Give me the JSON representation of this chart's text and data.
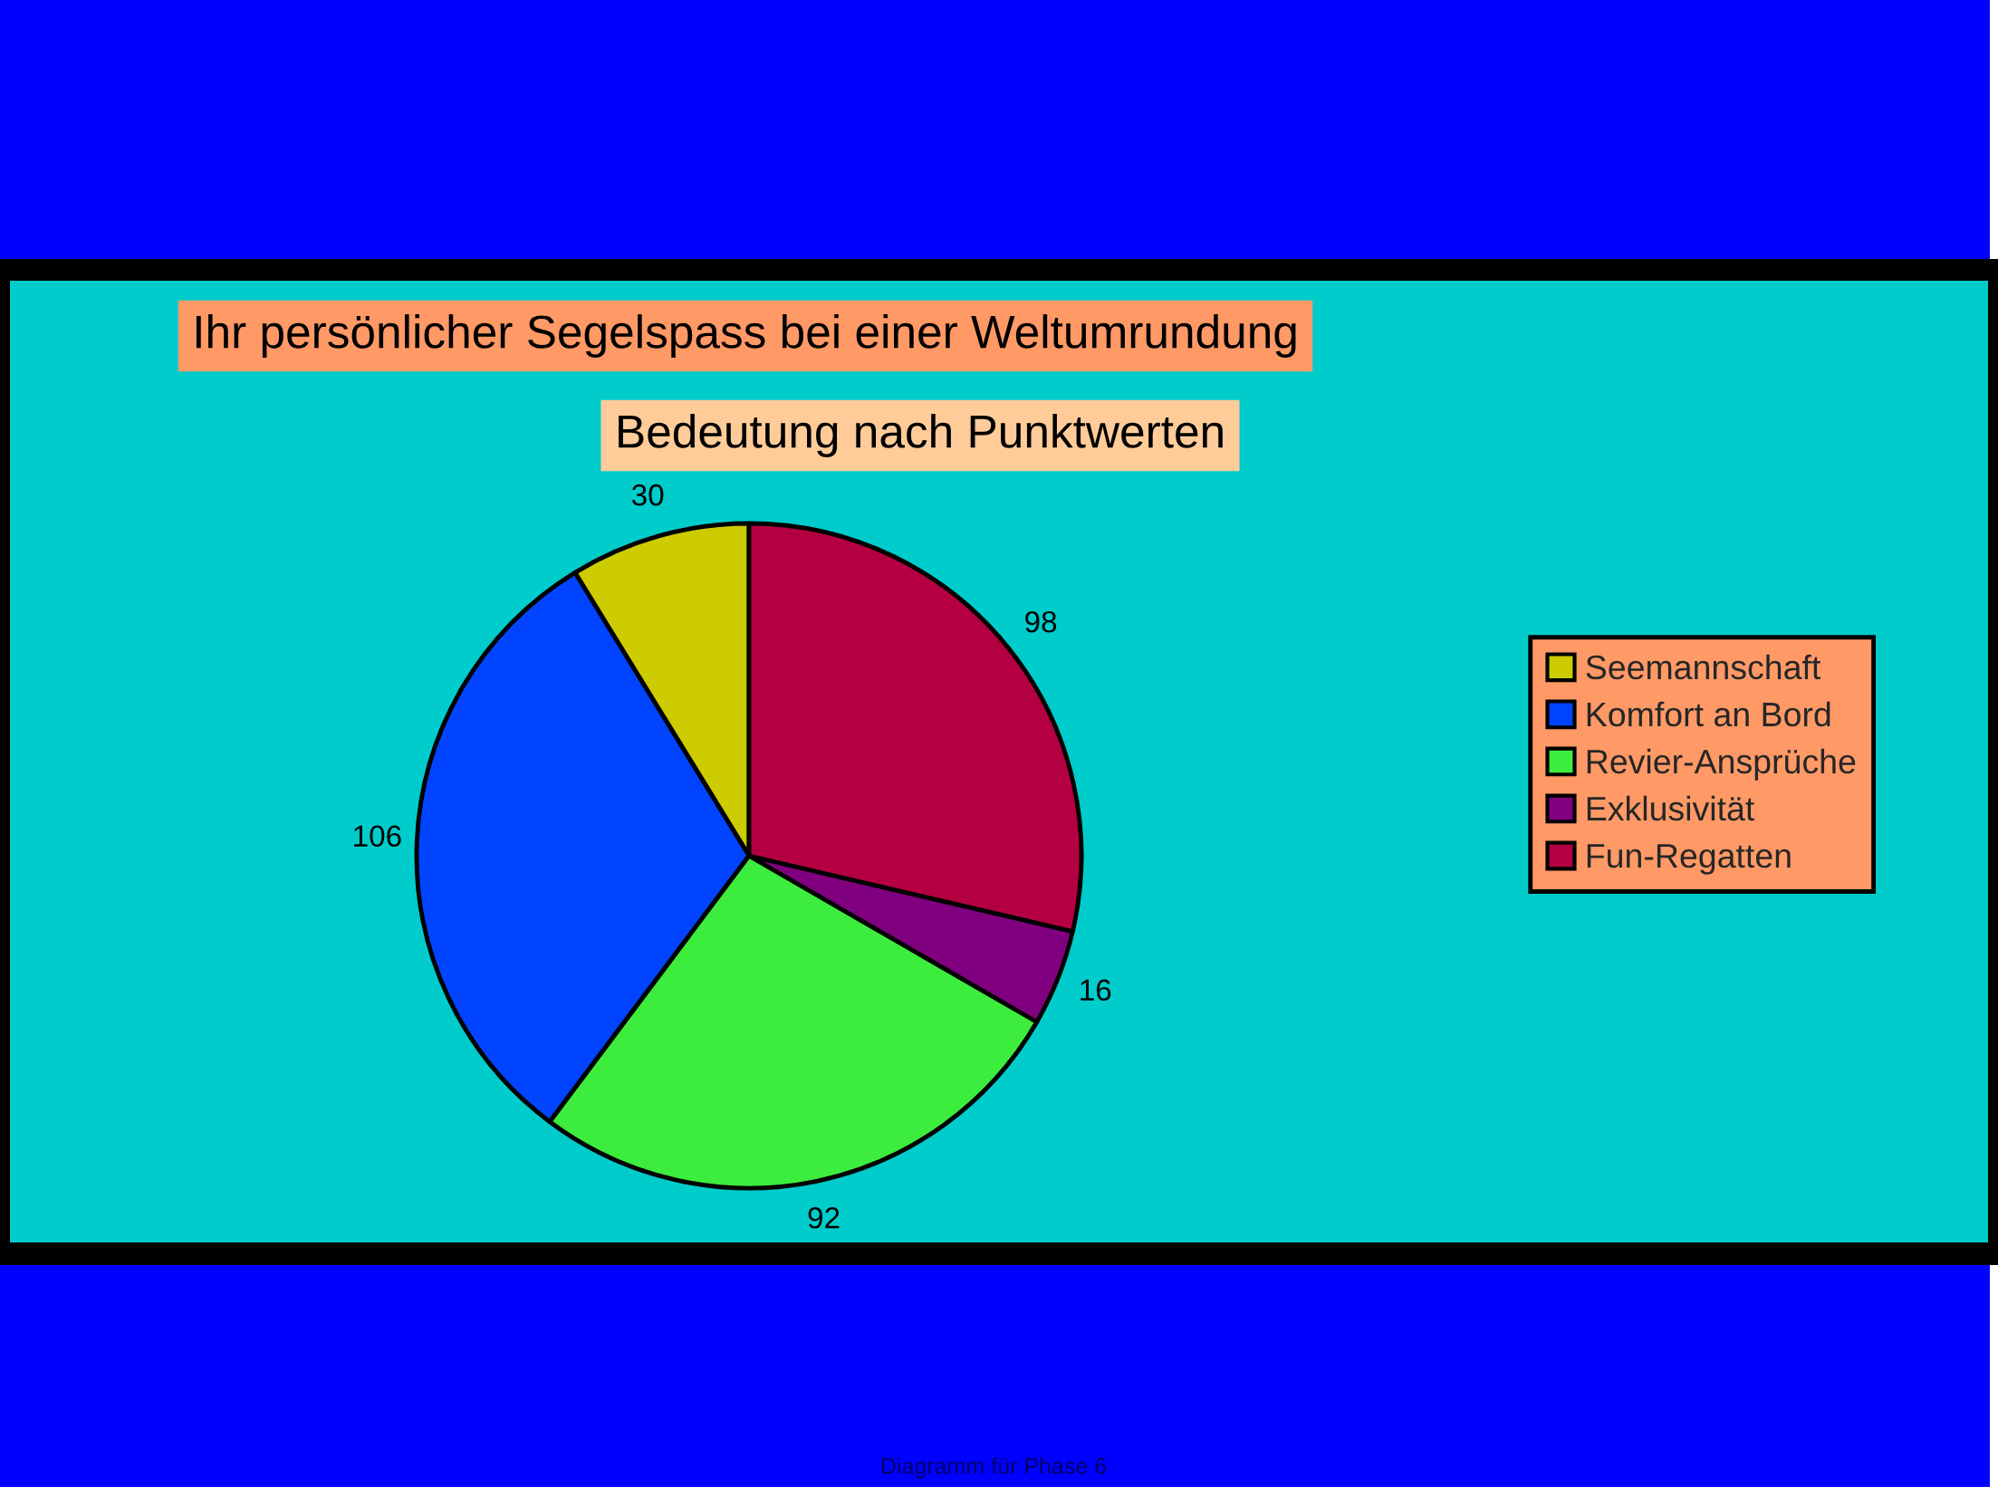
{
  "chart_data": {
    "type": "pie",
    "title": "Ihr persönlicher Segelspass bei einer Weltumrundung",
    "subtitle": "Bedeutung nach Punktwerten",
    "categories": [
      "Seemannschaft",
      "Komfort an Bord",
      "Revier-Ansprüche",
      "Exklusivität",
      "Fun-Regatten"
    ],
    "values": [
      30,
      106,
      92,
      16,
      98
    ],
    "colors": [
      "#cccc00",
      "#0044ff",
      "#3ded3d",
      "#800080",
      "#b40040"
    ],
    "data_labels": true,
    "legend": "right",
    "annotations": [
      "Diagramm für Phase 6"
    ]
  }
}
